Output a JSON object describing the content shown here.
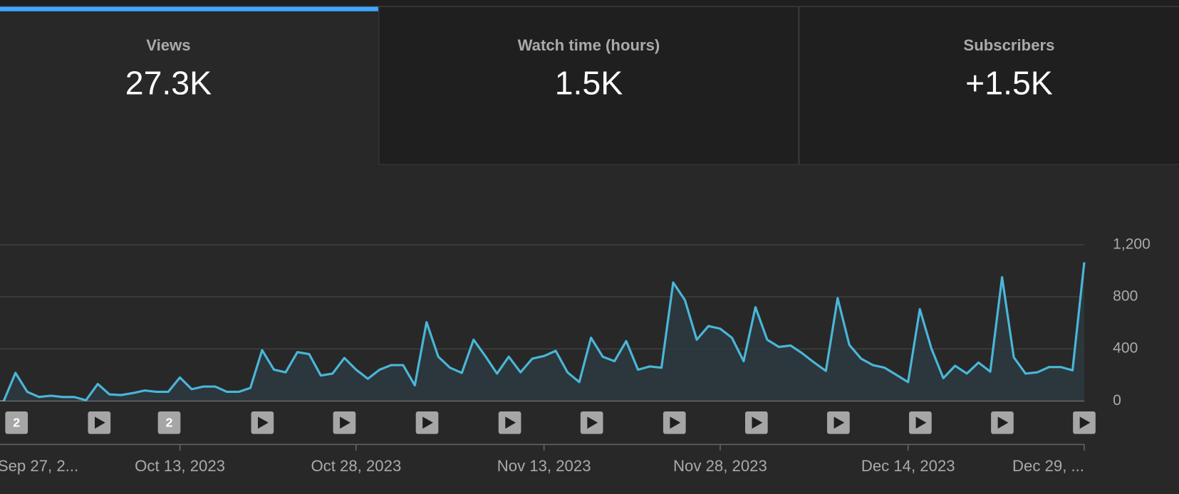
{
  "metrics": [
    {
      "label": "Views",
      "value": "27.3K"
    },
    {
      "label": "Watch time (hours)",
      "value": "1.5K"
    },
    {
      "label": "Subscribers",
      "value": "+1.5K"
    }
  ],
  "marker_counts": [
    "2",
    "2"
  ],
  "chart_data": {
    "type": "line",
    "color": "#4ab6d8",
    "categories": [
      "Sep 27, 2...",
      null,
      null,
      null,
      null,
      null,
      null,
      null,
      null,
      null,
      null,
      null,
      null,
      null,
      null,
      "Oct 13, 2023",
      null,
      null,
      null,
      null,
      null,
      null,
      null,
      null,
      null,
      null,
      null,
      null,
      null,
      null,
      "Oct 28, 2023",
      null,
      null,
      null,
      null,
      null,
      null,
      null,
      null,
      null,
      null,
      null,
      null,
      null,
      null,
      null,
      "Nov 13, 2023",
      null,
      null,
      null,
      null,
      null,
      null,
      null,
      null,
      null,
      null,
      null,
      null,
      null,
      null,
      "Nov 28, 2023",
      null,
      null,
      null,
      null,
      null,
      null,
      null,
      null,
      null,
      null,
      null,
      null,
      null,
      null,
      null,
      "Dec 14, 2023",
      null,
      null,
      null,
      null,
      null,
      null,
      null,
      null,
      null,
      null,
      null,
      null,
      null,
      null,
      "Dec 29, ..."
    ],
    "values": [
      0,
      215,
      70,
      30,
      40,
      30,
      30,
      5,
      130,
      50,
      45,
      60,
      80,
      70,
      70,
      180,
      90,
      110,
      110,
      70,
      70,
      100,
      390,
      240,
      220,
      375,
      360,
      195,
      210,
      330,
      240,
      170,
      240,
      275,
      275,
      120,
      605,
      340,
      255,
      215,
      470,
      345,
      210,
      340,
      220,
      325,
      345,
      385,
      220,
      145,
      485,
      340,
      305,
      460,
      240,
      265,
      255,
      910,
      775,
      470,
      575,
      555,
      485,
      305,
      720,
      470,
      415,
      425,
      365,
      295,
      230,
      790,
      430,
      325,
      275,
      255,
      200,
      145,
      705,
      400,
      175,
      270,
      210,
      295,
      225,
      950,
      335,
      210,
      220,
      260,
      260,
      235,
      1065
    ],
    "ylim": [
      0,
      1200
    ],
    "yticks": [
      0,
      400,
      800,
      {
        "value": 1200,
        "label": "1,200"
      }
    ],
    "grid": true
  }
}
